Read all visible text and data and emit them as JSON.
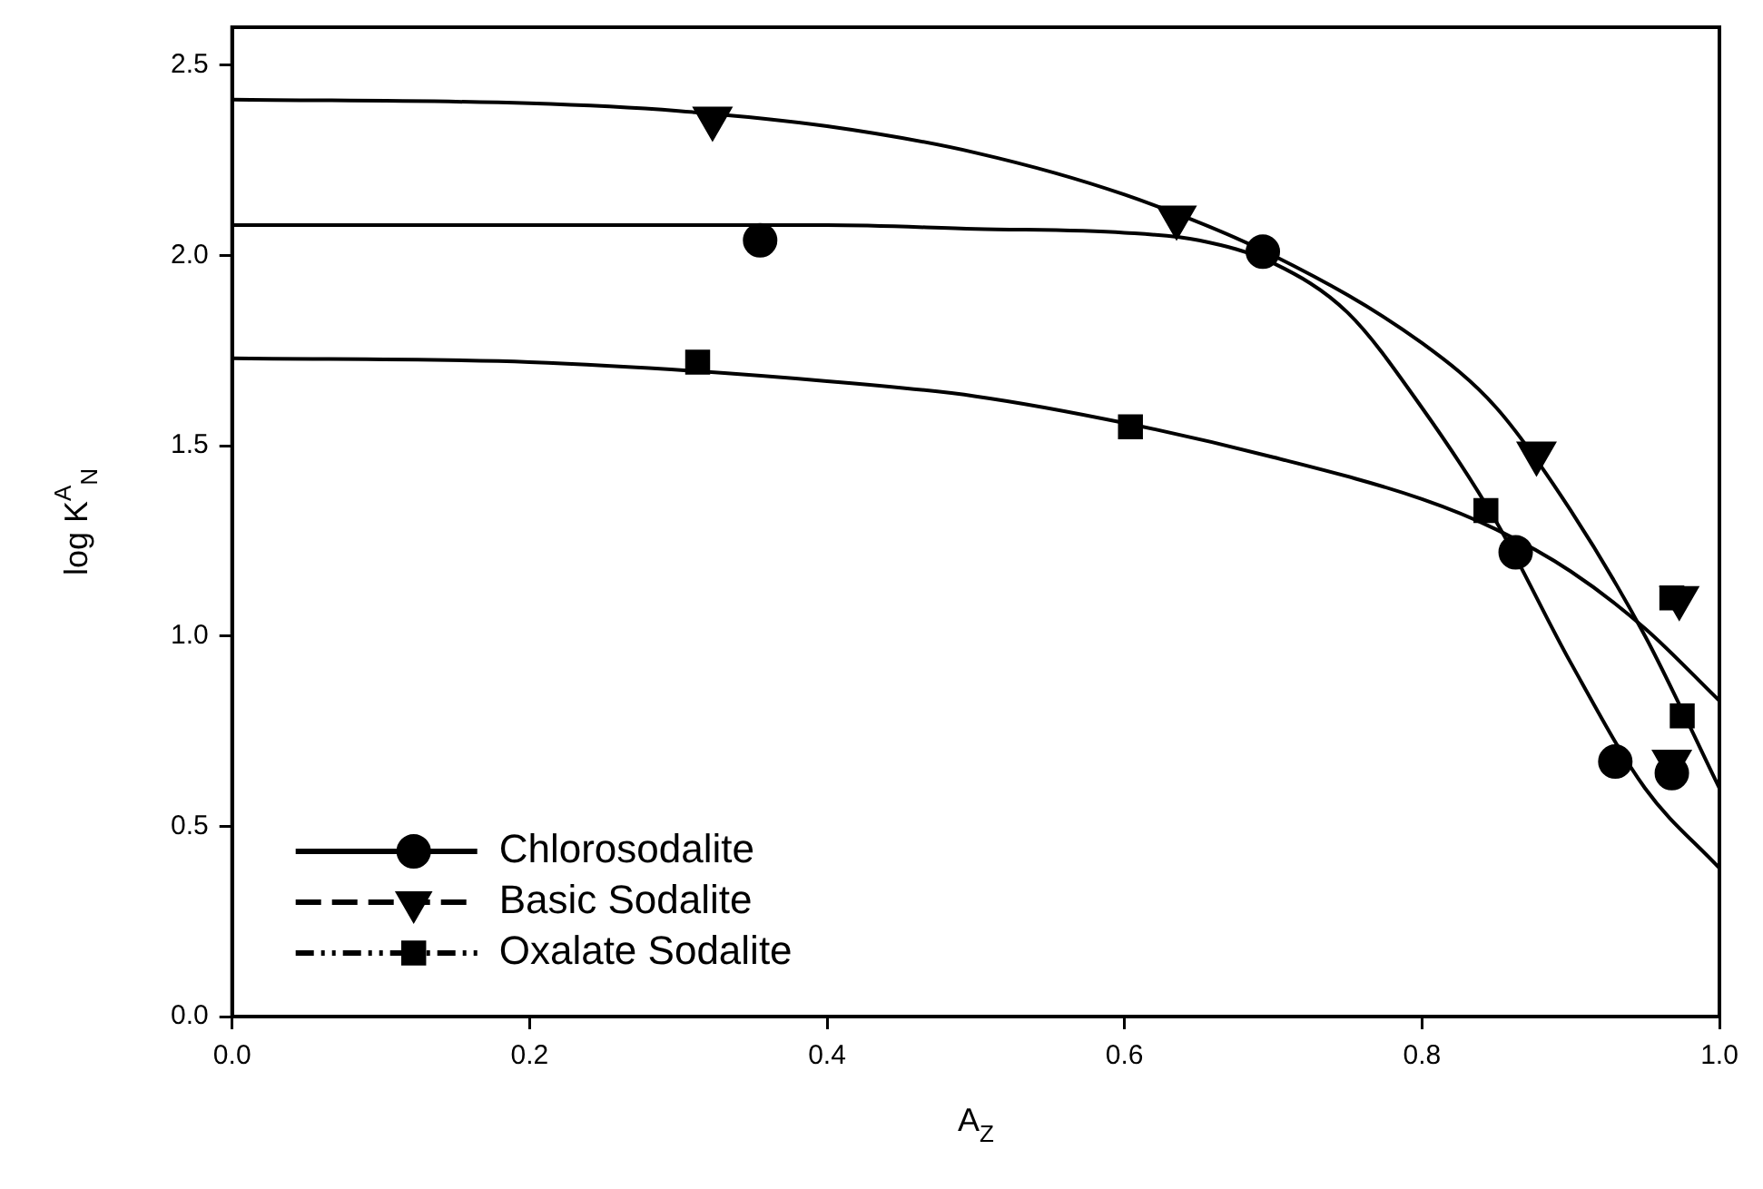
{
  "chart_data": {
    "type": "scatter",
    "xlabel": "A$_{Z}$",
    "ylabel": "log K$^{A}$$_{N}$",
    "xlim": [
      0,
      1
    ],
    "ylim": [
      0,
      2.6
    ],
    "xticks": [
      {
        "value": 0,
        "label": "0.0"
      },
      {
        "value": 0.2,
        "label": "0.2"
      },
      {
        "value": 0.4,
        "label": "0.4"
      },
      {
        "value": 0.6,
        "label": "0.6"
      },
      {
        "value": 0.8,
        "label": "0.8"
      },
      {
        "value": 1,
        "label": "1.0"
      }
    ],
    "yticks": [
      {
        "value": 0,
        "label": "0.0"
      },
      {
        "value": 0.5,
        "label": "0.5"
      },
      {
        "value": 1,
        "label": "1.0"
      },
      {
        "value": 1.5,
        "label": "1.5"
      },
      {
        "value": 2,
        "label": "2.0"
      },
      {
        "value": 2.5,
        "label": "2.5"
      }
    ],
    "grid": false,
    "legend": "bottom left",
    "series": [
      {
        "name": "Chlorosodalite",
        "type": "scatter",
        "color": "#000000",
        "marker": "circle",
        "line_style": "solid",
        "x": [
          0.355,
          0.693,
          0.863,
          0.93,
          0.968
        ],
        "values": [
          2.04,
          2.01,
          1.22,
          0.67,
          0.64
        ]
      },
      {
        "name": "Basic Sodalite",
        "type": "scatter",
        "color": "#000000",
        "marker": "triangle",
        "line_style": "dashed",
        "x": [
          0.323,
          0.635,
          0.877,
          0.973,
          0.968
        ],
        "values": [
          2.36,
          2.1,
          1.48,
          1.1,
          0.67
        ]
      },
      {
        "name": "Oxalate Sodalite",
        "type": "scatter",
        "color": "#000000",
        "marker": "square",
        "line_style": "dotted",
        "x": [
          0.313,
          0.604,
          0.843,
          0.968,
          0.975
        ],
        "values": [
          1.72,
          1.55,
          1.33,
          1.1,
          0.79
        ]
      },
      {
        "type": "line",
        "color": "#000000",
        "marker": "none",
        "line_style": "solid",
        "x": [
          0,
          0.2,
          0.4,
          0.5,
          0.6,
          0.65,
          0.7,
          0.75,
          0.8,
          0.85,
          0.9,
          0.95,
          1
        ],
        "values": [
          2.08,
          2.08,
          2.08,
          2.07,
          2.06,
          2.04,
          1.98,
          1.85,
          1.6,
          1.3,
          0.93,
          0.6,
          0.39
        ]
      },
      {
        "type": "line",
        "color": "#000000",
        "marker": "none",
        "line_style": "solid",
        "x": [
          0,
          0.2,
          0.3,
          0.4,
          0.5,
          0.6,
          0.7,
          0.8,
          0.85,
          0.9,
          0.95,
          1
        ],
        "values": [
          2.41,
          2.4,
          2.38,
          2.34,
          2.27,
          2.16,
          2.0,
          1.77,
          1.6,
          1.33,
          1.0,
          0.6
        ]
      },
      {
        "type": "line",
        "color": "#000000",
        "marker": "none",
        "line_style": "solid",
        "x": [
          0,
          0.2,
          0.4,
          0.5,
          0.6,
          0.7,
          0.8,
          0.85,
          0.9,
          0.95,
          1
        ],
        "values": [
          1.73,
          1.72,
          1.67,
          1.63,
          1.56,
          1.47,
          1.36,
          1.28,
          1.17,
          1.02,
          0.83
        ]
      }
    ]
  }
}
